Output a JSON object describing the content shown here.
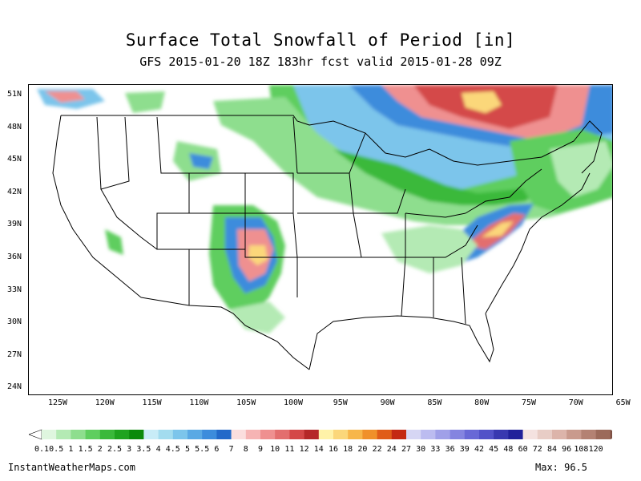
{
  "title": "Surface Total Snowfall of Period [in]",
  "subtitle": "GFS 2015-01-20 18Z 183hr fcst valid 2015-01-28 09Z",
  "latitudes": [
    "51N",
    "48N",
    "45N",
    "42N",
    "39N",
    "36N",
    "33N",
    "30N",
    "27N",
    "24N"
  ],
  "longitudes": [
    "125W",
    "120W",
    "115W",
    "110W",
    "105W",
    "100W",
    "95W",
    "90W",
    "85W",
    "80W",
    "75W",
    "70W",
    "65W"
  ],
  "legend": {
    "labels": [
      "0.1",
      "0.5",
      "1",
      "1.5",
      "2",
      "2.5",
      "3",
      "3.5",
      "4",
      "4.5",
      "5",
      "5.5",
      "6",
      "7",
      "8",
      "9",
      "10",
      "11",
      "12",
      "14",
      "16",
      "18",
      "20",
      "22",
      "24",
      "27",
      "30",
      "33",
      "36",
      "39",
      "42",
      "45",
      "48",
      "60",
      "72",
      "84",
      "96",
      "108",
      "120"
    ],
    "colors": [
      "#dff6df",
      "#b4eab4",
      "#8ede8e",
      "#5fce5f",
      "#3bb93b",
      "#1fa31f",
      "#0a8a0a",
      "#c8ecf7",
      "#a3dcef",
      "#7cc5eb",
      "#5aa9e4",
      "#3c8cdc",
      "#2269c9",
      "#fbdede",
      "#f6b4b4",
      "#ef9090",
      "#e36e6e",
      "#d44848",
      "#b52828",
      "#fff2a8",
      "#fbd77a",
      "#f7b64a",
      "#f0902a",
      "#e05c18",
      "#c42812",
      "#d6d6f4",
      "#bcbcf0",
      "#a0a0e8",
      "#8484e0",
      "#6868d6",
      "#5252c8",
      "#3838b0",
      "#20209a",
      "#f4e2e0",
      "#e8cdc6",
      "#dcb4aa",
      "#c99a8d",
      "#b48273",
      "#9c6a5a"
    ],
    "overflow_color": "#7c5044"
  },
  "footer": {
    "site": "InstantWeatherMaps.com",
    "max": "Max:  96.5"
  }
}
